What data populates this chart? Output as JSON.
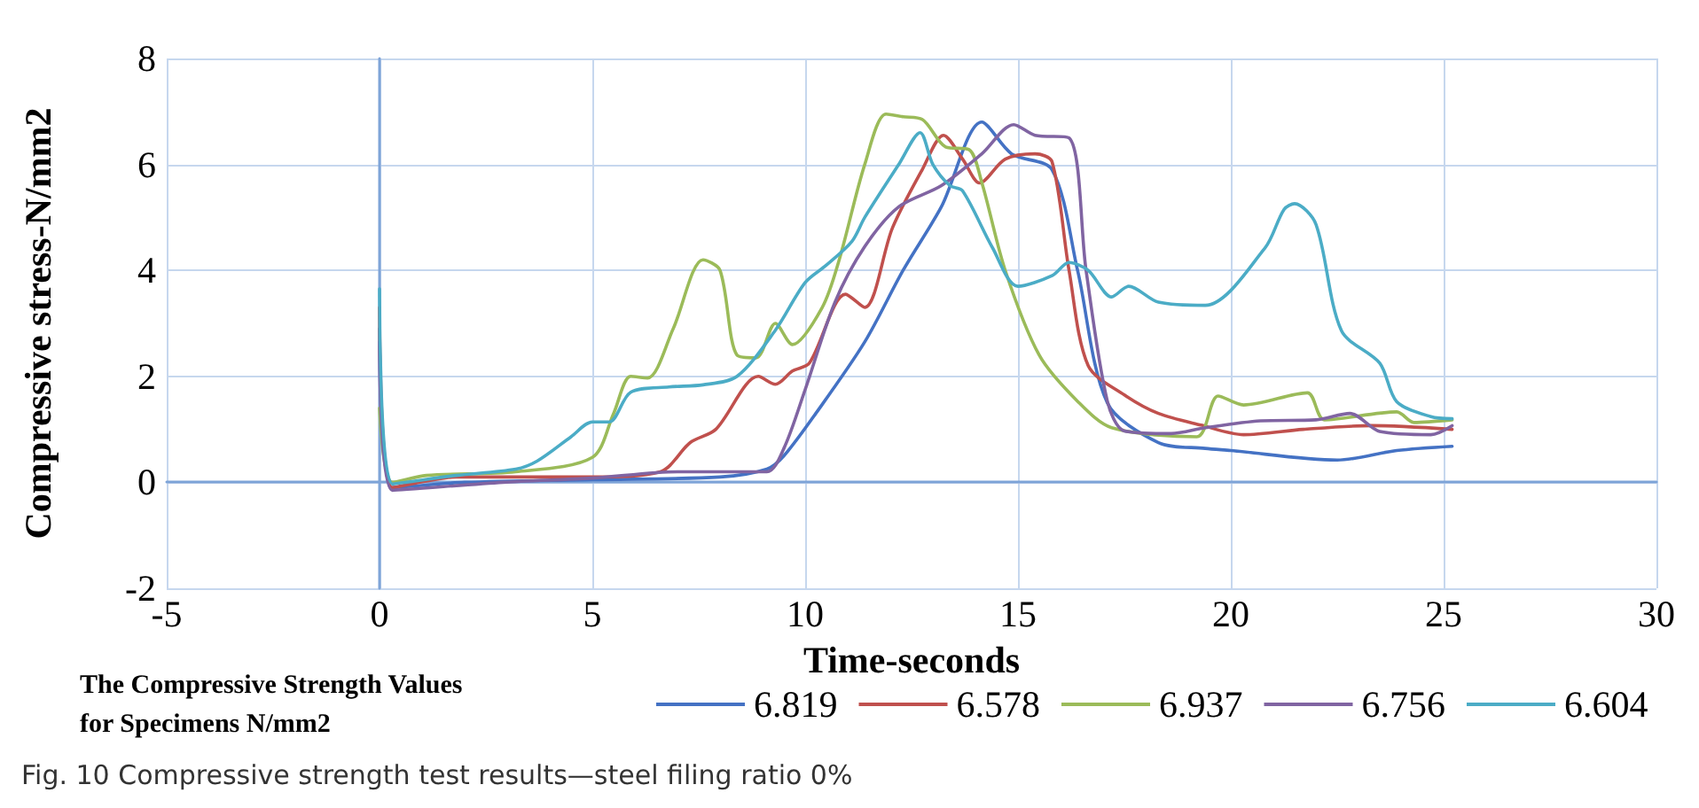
{
  "chart_data": {
    "type": "line",
    "xlabel": "Time-seconds",
    "ylabel": "Compressive stress-N/mm2",
    "legend_title": "The Compressive Strength Values for Specimens N/mm2",
    "annotations": [
      "Fig. 10 Compressive strength test results—steel filing ratio 0%"
    ],
    "xlim": [
      -5,
      30
    ],
    "xticks": [
      -5,
      0,
      5,
      10,
      15,
      20,
      25,
      30
    ],
    "ylim": [
      -2,
      8
    ],
    "yticks": [
      -2,
      0,
      2,
      4,
      6,
      8
    ],
    "grid": true,
    "legend": "bottom",
    "marker": "none",
    "line_style": "solid",
    "series": [
      {
        "name": "6.819",
        "color": "#4472c4",
        "x": [
          0,
          0.3,
          2,
          5,
          8,
          9.1,
          9.5,
          10.25,
          11.4,
          12.3,
          13.2,
          14.15,
          14.85,
          15.8,
          16.4,
          17.1,
          18.3,
          19.4,
          20,
          22.5,
          23.9,
          25.2
        ],
        "values": [
          2.9,
          -0.1,
          0,
          0.05,
          0.1,
          0.25,
          0.5,
          1.3,
          2.65,
          4.0,
          5.2,
          6.8,
          6.2,
          5.9,
          4.0,
          1.5,
          0.75,
          0.64,
          0.6,
          0.42,
          0.6,
          0.68
        ]
      },
      {
        "name": "6.578",
        "color": "#c0504d",
        "x": [
          0,
          0.3,
          1.8,
          5,
          6.6,
          7.3,
          7.9,
          8.9,
          9.3,
          9.7,
          10.1,
          10.95,
          11.4,
          12.05,
          12.75,
          13.25,
          13.7,
          14.1,
          14.7,
          15.4,
          15.8,
          16.2,
          16.65,
          17.5,
          18.3,
          19.3,
          20.3,
          21.7,
          23.3,
          25.2
        ],
        "values": [
          3.3,
          -0.1,
          0.1,
          0.1,
          0.2,
          0.75,
          1.0,
          2.0,
          1.85,
          2.1,
          2.25,
          3.55,
          3.3,
          4.8,
          5.9,
          6.55,
          6.1,
          5.65,
          6.1,
          6.2,
          6.05,
          4.0,
          2.2,
          1.65,
          1.3,
          1.08,
          0.9,
          1.0,
          1.07,
          1.0
        ]
      },
      {
        "name": "6.937",
        "color": "#9bbb59",
        "x": [
          0,
          0.3,
          1.1,
          3.2,
          5,
          5.5,
          5.9,
          6.3,
          6.9,
          7.6,
          8.0,
          8.4,
          8.85,
          9.3,
          9.7,
          10.4,
          10.8,
          11.4,
          11.9,
          12.3,
          12.75,
          13.3,
          13.85,
          14.15,
          14.7,
          15.5,
          16.4,
          17.2,
          19.2,
          19.7,
          20.3,
          21.8,
          22.2,
          23.9,
          24.3,
          25.2
        ],
        "values": [
          1.4,
          0,
          0.13,
          0.2,
          0.47,
          1.3,
          2.0,
          1.97,
          2.9,
          4.2,
          4.0,
          2.4,
          2.35,
          3.0,
          2.6,
          3.3,
          4.2,
          6.0,
          6.95,
          6.9,
          6.85,
          6.33,
          6.28,
          5.66,
          4.0,
          2.4,
          1.53,
          1.03,
          0.86,
          1.63,
          1.46,
          1.69,
          1.18,
          1.33,
          1.13,
          1.18
        ]
      },
      {
        "name": "6.756",
        "color": "#8064a2",
        "x": [
          0,
          0.3,
          2.9,
          5,
          7,
          9.1,
          9.5,
          10,
          10.7,
          11.4,
          12.2,
          13.2,
          14.15,
          14.9,
          15.4,
          16.2,
          16.6,
          17.1,
          17.5,
          18.6,
          19.4,
          20.7,
          22,
          22.8,
          23.5,
          24.7,
          25.2
        ],
        "values": [
          2.65,
          -0.15,
          0,
          0.08,
          0.2,
          0.2,
          0.64,
          1.75,
          3.4,
          4.45,
          5.2,
          5.6,
          6.2,
          6.75,
          6.55,
          6.5,
          4.0,
          1.53,
          0.97,
          0.92,
          1.03,
          1.16,
          1.18,
          1.3,
          0.96,
          0.9,
          1.07
        ]
      },
      {
        "name": "6.604",
        "color": "#4bacc6",
        "x": [
          0,
          0.3,
          1.8,
          3.2,
          3.7,
          4.5,
          5,
          5.4,
          5.9,
          6.8,
          7.6,
          8.4,
          9.3,
          10,
          10.5,
          11.1,
          11.4,
          12.2,
          12.7,
          13,
          13.4,
          13.7,
          14.4,
          15,
          15.8,
          16.2,
          16.65,
          17.2,
          17.6,
          18.3,
          19.4,
          20.8,
          21.25,
          21.5,
          22,
          22.6,
          23.5,
          23.9,
          24.7,
          25.2
        ],
        "values": [
          3.65,
          -0.03,
          0.13,
          0.25,
          0.4,
          0.86,
          1.14,
          1.14,
          1.7,
          1.8,
          1.84,
          2.0,
          2.87,
          3.77,
          4.1,
          4.55,
          5.0,
          6.0,
          6.6,
          6.0,
          5.6,
          5.5,
          4.43,
          3.7,
          3.9,
          4.15,
          4.0,
          3.5,
          3.7,
          3.4,
          3.34,
          4.42,
          5.15,
          5.26,
          4.87,
          2.86,
          2.25,
          1.52,
          1.24,
          1.2
        ]
      }
    ]
  }
}
